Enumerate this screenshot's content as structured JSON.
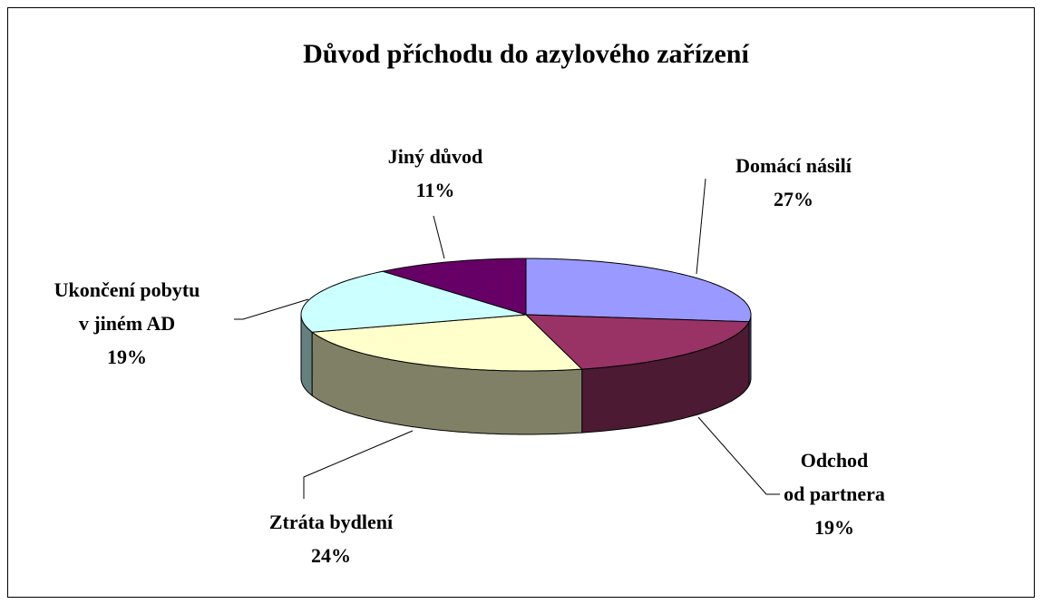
{
  "chart_data": {
    "type": "pie",
    "title": "Důvod příchodu do azylového zařízení",
    "categories": [
      "Domácí násilí",
      "Odchod od partnera",
      "Ztráta bydlení",
      "Ukončení pobytu v jiném AD",
      "Jiný důvod"
    ],
    "values": [
      27,
      19,
      24,
      19,
      11
    ],
    "value_labels": [
      "27%",
      "19%",
      "24%",
      "19%",
      "11%"
    ],
    "colors": [
      "#9999ff",
      "#993366",
      "#ffffcc",
      "#ccffff",
      "#660066"
    ]
  }
}
